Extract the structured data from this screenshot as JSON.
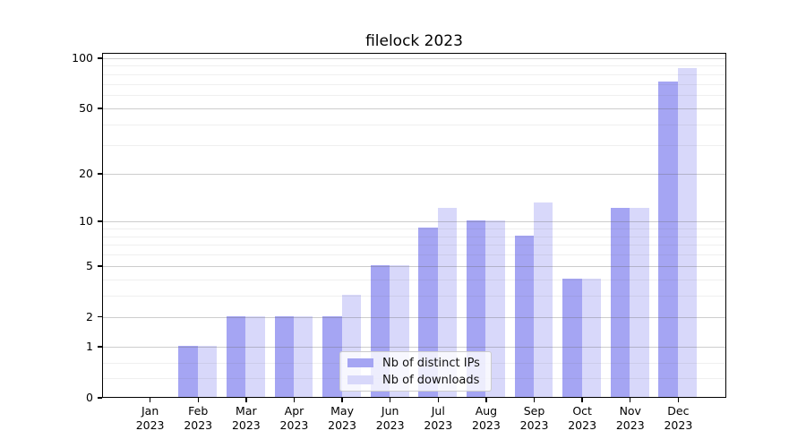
{
  "figure": {
    "title": "filelock 2023",
    "background": "#ffffff"
  },
  "chart_data": {
    "type": "bar",
    "title": "filelock 2023",
    "categories": [
      "Jan 2023",
      "Feb 2023",
      "Mar 2023",
      "Apr 2023",
      "May 2023",
      "Jun 2023",
      "Jul 2023",
      "Aug 2023",
      "Sep 2023",
      "Oct 2023",
      "Nov 2023",
      "Dec 2023"
    ],
    "series": [
      {
        "name": "Nb of distinct IPs",
        "color": "#a5a5f3",
        "values": [
          0,
          1,
          2,
          2,
          2,
          5,
          9,
          10,
          8,
          4,
          12,
          72
        ]
      },
      {
        "name": "Nb of downloads",
        "color": "#d8d8fa",
        "values": [
          0,
          1,
          2,
          2,
          3,
          5,
          12,
          10,
          13,
          4,
          12,
          86
        ]
      }
    ],
    "xlabel": "",
    "ylabel": "",
    "yscale": "log1p",
    "ylim": [
      0,
      107.5
    ],
    "yticks_major": [
      0,
      1,
      2,
      5,
      10,
      20,
      50,
      100
    ],
    "yticks_minor": [
      0.3,
      0.6,
      3,
      4,
      6,
      7,
      8,
      9,
      30,
      40,
      60,
      70,
      80,
      90
    ],
    "grid": true,
    "grid_above_bars": true,
    "bar_width_fraction": 0.4,
    "legend_position": "lower center",
    "axis_color": "#000000",
    "major_grid_color": "#c6c6c6",
    "minor_grid_color": "#f0f0f0"
  }
}
